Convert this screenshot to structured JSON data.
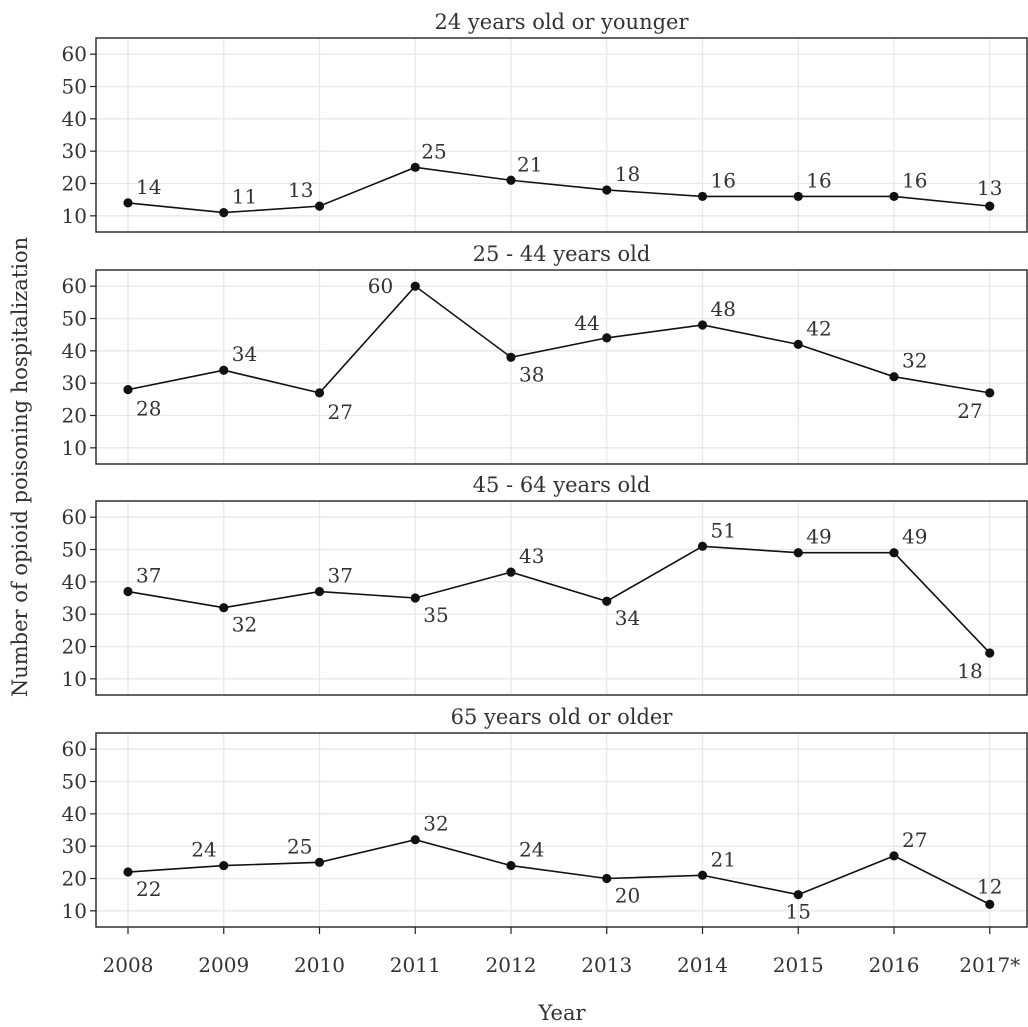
{
  "chart_data": {
    "type": "line",
    "x": [
      "2008",
      "2009",
      "2010",
      "2011",
      "2012",
      "2013",
      "2014",
      "2015",
      "2016",
      "2017*"
    ],
    "xlabel": "Year",
    "ylabel": "Number of opioid poisoning hospitalization",
    "ylim": [
      5,
      65
    ],
    "yticks": [
      10,
      20,
      30,
      40,
      50,
      60
    ],
    "grid": true,
    "series_color": "#111111",
    "panels": [
      {
        "title": "24 years old or younger",
        "values": [
          14,
          11,
          13,
          25,
          21,
          18,
          16,
          16,
          16,
          13
        ]
      },
      {
        "title": "25 - 44 years old",
        "values": [
          28,
          34,
          27,
          60,
          38,
          44,
          48,
          42,
          32,
          27
        ]
      },
      {
        "title": "45 - 64 years old",
        "values": [
          37,
          32,
          37,
          35,
          43,
          34,
          51,
          49,
          49,
          18
        ]
      },
      {
        "title": "65 years old or older",
        "values": [
          22,
          24,
          25,
          32,
          24,
          20,
          21,
          15,
          27,
          12
        ]
      }
    ]
  }
}
